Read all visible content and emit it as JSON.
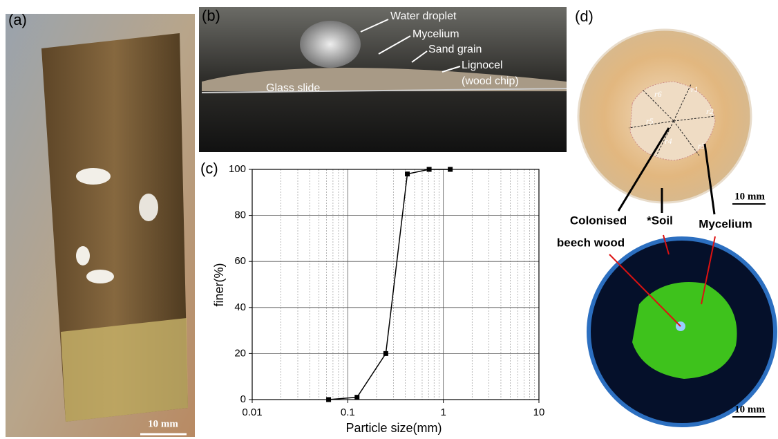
{
  "panels": {
    "a": {
      "label": "(a)",
      "scale_bar": "10 mm"
    },
    "b": {
      "label": "(b)",
      "annotations": [
        "Water droplet",
        "Mycelium",
        "Sand grain",
        "Lignocel",
        "(wood chip)",
        "Glass slide"
      ]
    },
    "c": {
      "label": "(c)"
    },
    "d": {
      "label": "(d)",
      "radii": [
        "r1",
        "r2",
        "r3",
        "r4",
        "r5",
        "r6"
      ],
      "annotations": [
        "Colonised",
        "beech wood",
        "*Soil",
        "Mycelium"
      ],
      "scale_bar_top": "10 mm",
      "scale_bar_bottom": "10 mm"
    }
  },
  "chart_data": {
    "type": "line",
    "xlabel": "Particle size(mm)",
    "ylabel": "finer(%)",
    "x": [
      0.063,
      0.125,
      0.25,
      0.42,
      0.71,
      1.18
    ],
    "values": [
      0,
      1,
      20,
      98,
      100,
      100
    ],
    "color": "#000000",
    "xlim": [
      0.01,
      10
    ],
    "xticks": [
      0.01,
      0.1,
      1,
      10
    ],
    "log_x": true,
    "ylim": [
      0,
      100
    ],
    "yticks": [
      0,
      20,
      40,
      60,
      80,
      100
    ],
    "grid": true
  }
}
